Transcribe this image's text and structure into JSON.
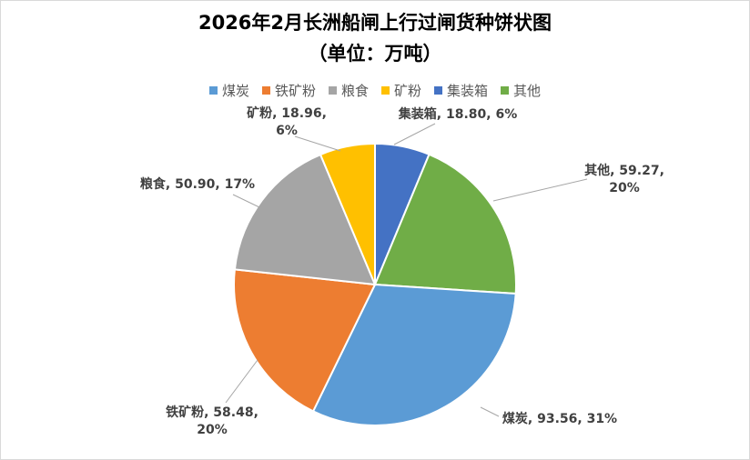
{
  "chart_data": {
    "type": "pie",
    "title": "2026年2月长洲船闸上行过闸货种饼状图",
    "subtitle": "（单位：万吨）",
    "legend_position": "top",
    "categories": [
      "煤炭",
      "铁矿粉",
      "粮食",
      "矿粉",
      "集装箱",
      "其他"
    ],
    "values": [
      93.56,
      58.48,
      50.9,
      18.96,
      18.8,
      59.27
    ],
    "percent_labels": [
      "31%",
      "20%",
      "17%",
      "6%",
      "6%",
      "20%"
    ],
    "value_labels": [
      "93.56",
      "58.48",
      "50.90",
      "18.96",
      "18.80",
      "59.27"
    ],
    "colors": [
      "#5b9bd5",
      "#ed7d31",
      "#a5a5a5",
      "#ffc000",
      "#4472c4",
      "#70ad47"
    ]
  }
}
